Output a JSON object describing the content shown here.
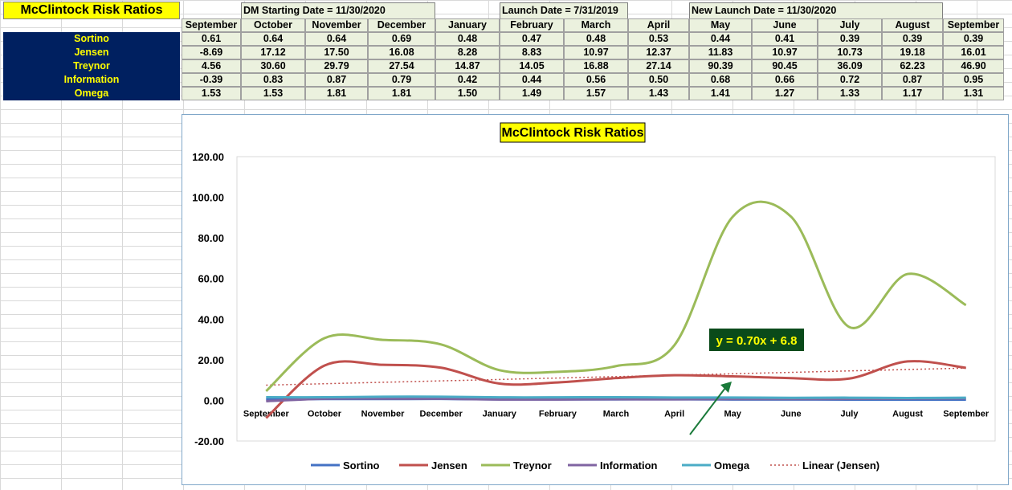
{
  "sheet": {
    "title": "McClintock Risk Ratios",
    "dm_date": "DM Starting Date = 11/30/2020",
    "launch_date": "Launch Date = 7/31/2019",
    "new_launch_date": "New Launch Date = 11/30/2020",
    "months": [
      "September",
      "October",
      "November",
      "December",
      "January",
      "February",
      "March",
      "April",
      "May",
      "June",
      "July",
      "August",
      "September"
    ],
    "rows": [
      {
        "label": "Sortino",
        "values": [
          "0.61",
          "0.64",
          "0.64",
          "0.69",
          "0.48",
          "0.47",
          "0.48",
          "0.53",
          "0.44",
          "0.41",
          "0.39",
          "0.39",
          "0.39"
        ]
      },
      {
        "label": "Jensen",
        "values": [
          "-8.69",
          "17.12",
          "17.50",
          "16.08",
          "8.28",
          "8.83",
          "10.97",
          "12.37",
          "11.83",
          "10.97",
          "10.73",
          "19.18",
          "16.01"
        ]
      },
      {
        "label": "Treynor",
        "values": [
          "4.56",
          "30.60",
          "29.79",
          "27.54",
          "14.87",
          "14.05",
          "16.88",
          "27.14",
          "90.39",
          "90.45",
          "36.09",
          "62.23",
          "46.90"
        ]
      },
      {
        "label": "Information",
        "values": [
          "-0.39",
          "0.83",
          "0.87",
          "0.79",
          "0.42",
          "0.44",
          "0.56",
          "0.50",
          "0.68",
          "0.66",
          "0.72",
          "0.87",
          "0.95"
        ]
      },
      {
        "label": "Omega",
        "values": [
          "1.53",
          "1.53",
          "1.81",
          "1.81",
          "1.50",
          "1.49",
          "1.57",
          "1.43",
          "1.41",
          "1.27",
          "1.33",
          "1.17",
          "1.31"
        ]
      }
    ]
  },
  "chart_data": {
    "type": "line",
    "title": "McClintock Risk Ratios",
    "categories": [
      "September",
      "October",
      "November",
      "December",
      "January",
      "February",
      "March",
      "April",
      "May",
      "June",
      "July",
      "August",
      "September"
    ],
    "ylim": [
      -20,
      120
    ],
    "yticks": [
      "120.00",
      "100.00",
      "80.00",
      "60.00",
      "40.00",
      "20.00",
      "0.00",
      "-20.00"
    ],
    "ytick_values": [
      120,
      100,
      80,
      60,
      40,
      20,
      0,
      -20
    ],
    "grid": false,
    "legend_position": "bottom",
    "series": [
      {
        "name": "Sortino",
        "color": "#4472c4",
        "values": [
          0.61,
          0.64,
          0.64,
          0.69,
          0.48,
          0.47,
          0.48,
          0.53,
          0.44,
          0.41,
          0.39,
          0.39,
          0.39
        ]
      },
      {
        "name": "Jensen",
        "color": "#c0504d",
        "values": [
          -8.69,
          17.12,
          17.5,
          16.08,
          8.28,
          8.83,
          10.97,
          12.37,
          11.83,
          10.97,
          10.73,
          19.18,
          16.01
        ]
      },
      {
        "name": "Treynor",
        "color": "#9bbb59",
        "values": [
          4.56,
          30.6,
          29.79,
          27.54,
          14.87,
          14.05,
          16.88,
          27.14,
          90.39,
          90.45,
          36.09,
          62.23,
          46.9
        ]
      },
      {
        "name": "Information",
        "color": "#8064a2",
        "values": [
          -0.39,
          0.83,
          0.87,
          0.79,
          0.42,
          0.44,
          0.56,
          0.5,
          0.68,
          0.66,
          0.72,
          0.87,
          0.95
        ]
      },
      {
        "name": "Omega",
        "color": "#4bacc6",
        "values": [
          1.53,
          1.53,
          1.81,
          1.81,
          1.5,
          1.49,
          1.57,
          1.43,
          1.41,
          1.27,
          1.33,
          1.17,
          1.31
        ]
      }
    ],
    "trendline": {
      "name": "Linear (Jensen)",
      "color": "#c0504d",
      "slope": 0.7,
      "intercept": 6.8
    },
    "annotation": {
      "text": "y = 0.70x + 6.8",
      "bg": "#0a4a1a",
      "color": "#ffff00"
    },
    "arrow_color": "#1a7a3a"
  }
}
